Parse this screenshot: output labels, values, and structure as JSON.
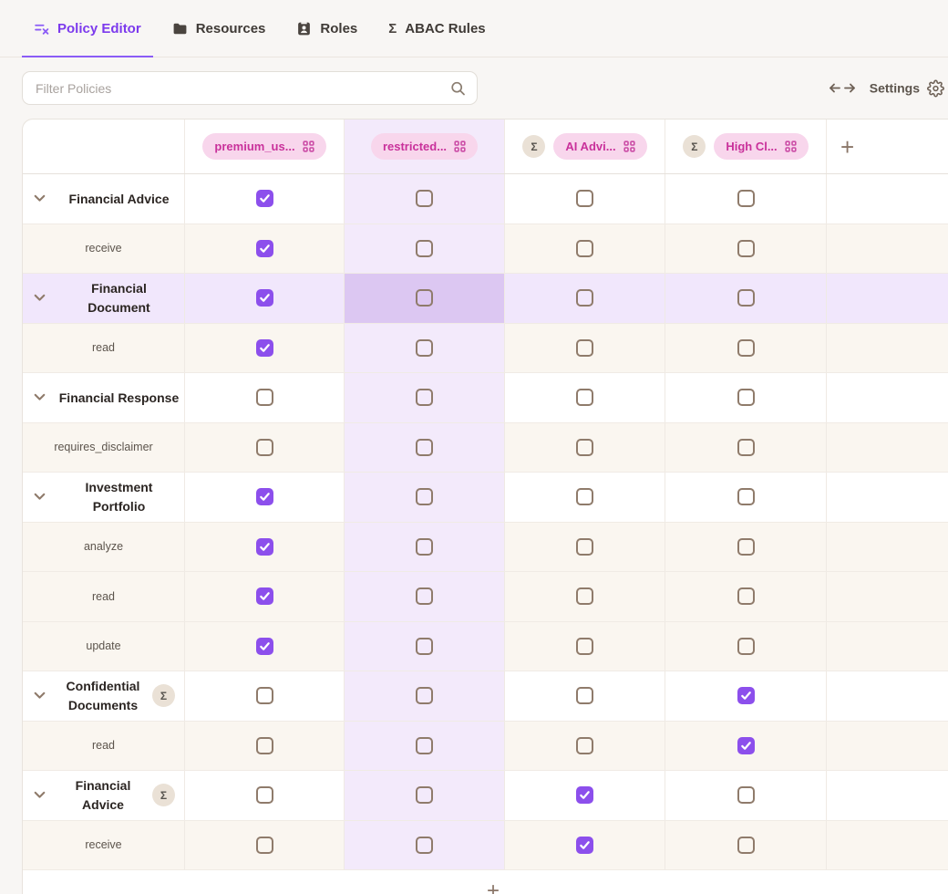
{
  "tabs": [
    {
      "label": "Policy Editor",
      "icon": "policy-editor-icon",
      "active": true
    },
    {
      "label": "Resources",
      "icon": "folder-icon",
      "active": false
    },
    {
      "label": "Roles",
      "icon": "id-badge-icon",
      "active": false
    },
    {
      "label": "ABAC Rules",
      "icon": "sigma-icon",
      "active": false
    }
  ],
  "toolbar": {
    "filter_placeholder": "Filter Policies",
    "settings_label": "Settings",
    "expand_icon": "arrows-left-right-icon",
    "settings_icon": "gear-icon"
  },
  "grid": {
    "selected_col": 1,
    "selected_row_label": "Financial Document",
    "columns": [
      {
        "label": "premium_us...",
        "sigma": false
      },
      {
        "label": "restricted...",
        "sigma": false
      },
      {
        "label": "AI Advi...",
        "sigma": true
      },
      {
        "label": "High Cl...",
        "sigma": true
      }
    ],
    "add_column_label": "+",
    "add_row_label": "+",
    "sigma_glyph": "Σ",
    "rows": [
      {
        "type": "resource",
        "label": "Financial Advice",
        "sigma": false,
        "selected": false,
        "two_line": false,
        "checks": [
          1,
          0,
          0,
          0
        ]
      },
      {
        "type": "action",
        "label": "receive",
        "sigma": false,
        "selected": false,
        "two_line": false,
        "checks": [
          1,
          0,
          0,
          0
        ]
      },
      {
        "type": "resource",
        "label": "Financial Document",
        "sigma": false,
        "selected": true,
        "two_line": true,
        "checks": [
          1,
          0,
          0,
          0
        ]
      },
      {
        "type": "action",
        "label": "read",
        "sigma": false,
        "selected": false,
        "two_line": false,
        "checks": [
          1,
          0,
          0,
          0
        ]
      },
      {
        "type": "resource",
        "label": "Financial Response",
        "sigma": false,
        "selected": false,
        "two_line": false,
        "checks": [
          0,
          0,
          0,
          0
        ]
      },
      {
        "type": "action",
        "label": "requires_disclaimer",
        "sigma": false,
        "selected": false,
        "two_line": false,
        "checks": [
          0,
          0,
          0,
          0
        ]
      },
      {
        "type": "resource",
        "label": "Investment Portfolio",
        "sigma": false,
        "selected": false,
        "two_line": true,
        "checks": [
          1,
          0,
          0,
          0
        ]
      },
      {
        "type": "action",
        "label": "analyze",
        "sigma": false,
        "selected": false,
        "two_line": false,
        "checks": [
          1,
          0,
          0,
          0
        ]
      },
      {
        "type": "action",
        "label": "read",
        "sigma": false,
        "selected": false,
        "two_line": false,
        "checks": [
          1,
          0,
          0,
          0
        ]
      },
      {
        "type": "action",
        "label": "update",
        "sigma": false,
        "selected": false,
        "two_line": false,
        "checks": [
          1,
          0,
          0,
          0
        ]
      },
      {
        "type": "resource",
        "label": "Confidential Documents",
        "sigma": true,
        "selected": false,
        "two_line": true,
        "checks": [
          0,
          0,
          0,
          1
        ]
      },
      {
        "type": "action",
        "label": "read",
        "sigma": false,
        "selected": false,
        "two_line": false,
        "checks": [
          0,
          0,
          0,
          1
        ]
      },
      {
        "type": "resource",
        "label": "Financial Advice",
        "sigma": true,
        "selected": false,
        "two_line": true,
        "checks": [
          0,
          0,
          1,
          0
        ]
      },
      {
        "type": "action",
        "label": "receive",
        "sigma": false,
        "selected": false,
        "two_line": false,
        "checks": [
          0,
          0,
          1,
          0
        ]
      }
    ]
  },
  "colors": {
    "accent_purple": "#8c4fec",
    "active_tab": "#7c3aed",
    "chip_bg": "#f8d6ec",
    "chip_text": "#c9319b",
    "selected_column_bg": "#f3eafb",
    "selected_row_bg": "#f1e7fc",
    "intersection_bg": "#dcc7f2",
    "action_row_bg": "#faf6f0",
    "sigma_badge_bg": "#eae1d6",
    "checkbox_border": "#8f7b6b"
  }
}
